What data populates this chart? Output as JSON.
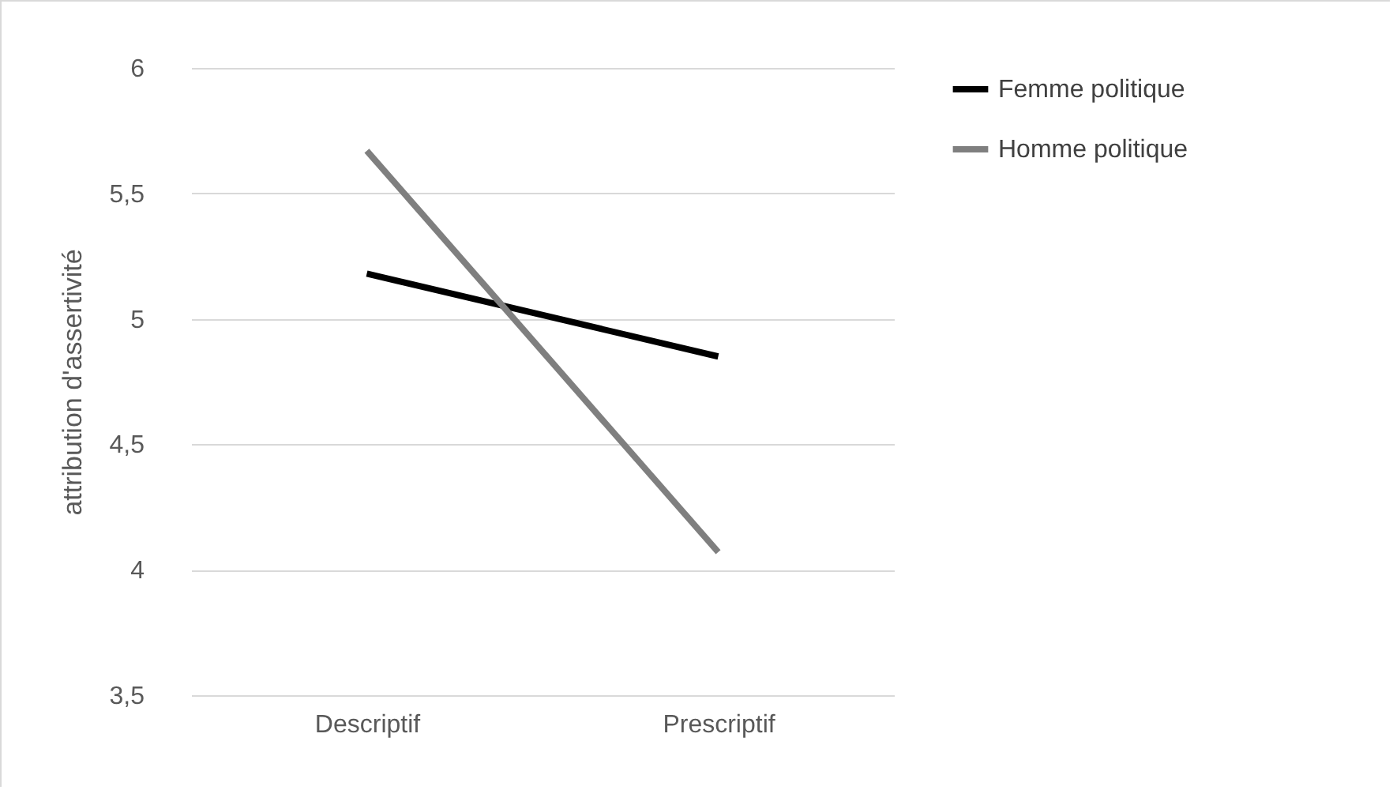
{
  "chart_data": {
    "type": "line",
    "ylabel": "attribution d'assertivité",
    "categories": [
      "Descriptif",
      "Prescriptif"
    ],
    "series": [
      {
        "name": "Femme politique",
        "color": "#000000",
        "values": [
          5.18,
          4.85
        ]
      },
      {
        "name": "Homme politique",
        "color": "#7f7f7f",
        "values": [
          5.67,
          4.07
        ]
      }
    ],
    "ylim": [
      3.5,
      6
    ],
    "yticks": [
      {
        "value": 3.5,
        "label": "3,5"
      },
      4,
      {
        "value": 4.5,
        "label": "4,5"
      },
      5,
      {
        "value": 5.5,
        "label": "5,5"
      },
      6
    ],
    "grid": "y",
    "legend": "right",
    "marker": "none",
    "line_style": "solid"
  }
}
